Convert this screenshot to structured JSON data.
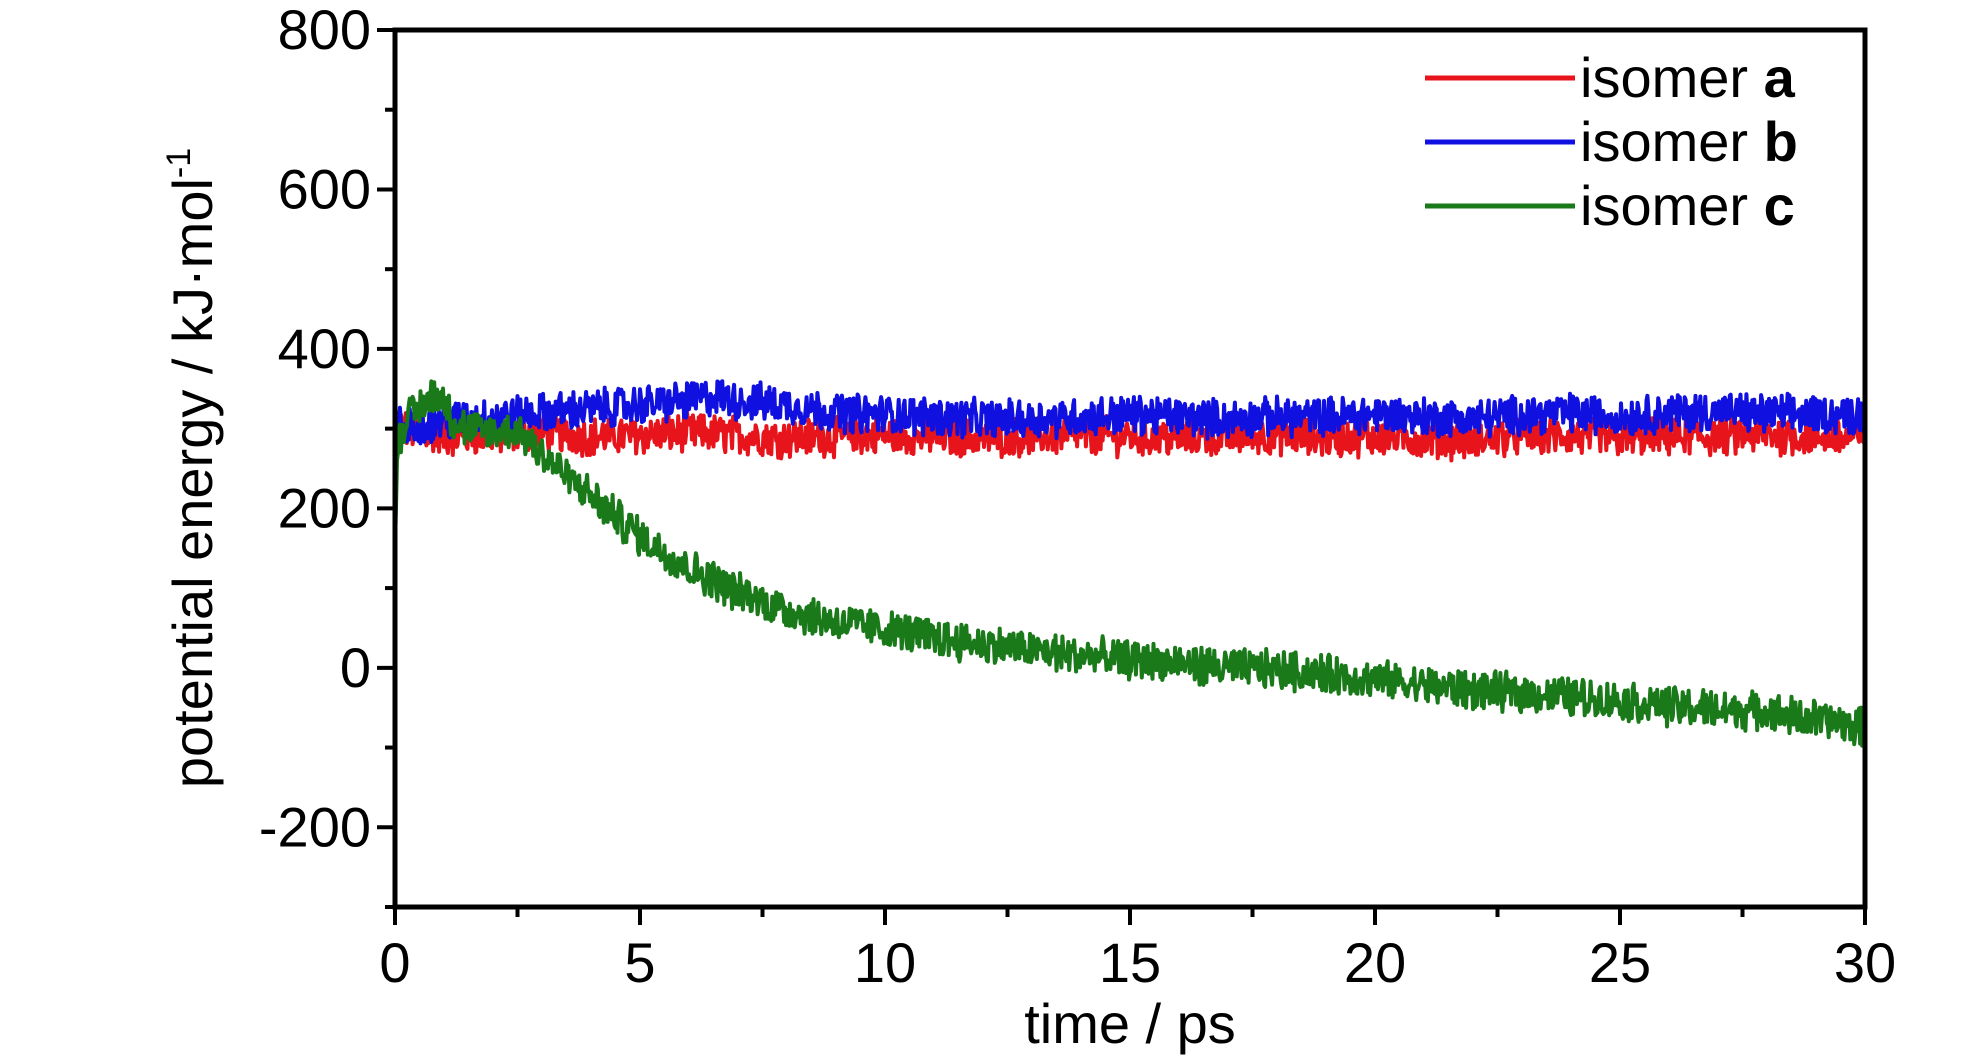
{
  "chart_data": {
    "type": "line",
    "xlabel": "time / ps",
    "ylabel_main": "potential energy / kJ·mol",
    "ylabel_sup": "-1",
    "xlim": [
      0,
      30
    ],
    "ylim": [
      -300,
      800
    ],
    "xticks": [
      0,
      5,
      10,
      15,
      20,
      25,
      30
    ],
    "yticks": [
      -200,
      0,
      200,
      400,
      600,
      800
    ],
    "grid": false,
    "legend_position": "top-right",
    "series": [
      {
        "name_prefix": "isomer ",
        "name_bold": "a",
        "color": "#e8141b",
        "x": [
          0,
          0.05,
          0.2,
          0.5,
          1,
          2,
          3,
          4,
          5,
          6,
          7,
          8,
          9,
          10,
          11,
          12,
          13,
          14,
          15,
          16,
          17,
          18,
          19,
          20,
          21,
          22,
          23,
          24,
          25,
          26,
          27,
          28,
          29,
          30
        ],
        "y": [
          200,
          310,
          300,
          295,
          290,
          292,
          295,
          290,
          292,
          295,
          292,
          288,
          290,
          292,
          290,
          288,
          290,
          292,
          290,
          288,
          290,
          292,
          288,
          290,
          288,
          285,
          292,
          290,
          288,
          290,
          290,
          292,
          290,
          288
        ]
      },
      {
        "name_prefix": "isomer ",
        "name_bold": "b",
        "color": "#1010e0",
        "x": [
          0,
          0.05,
          0.2,
          0.5,
          1,
          2,
          3,
          4,
          5,
          6,
          6.5,
          7,
          8,
          9,
          10,
          11,
          12,
          13,
          14,
          15,
          16,
          17,
          18,
          19,
          20,
          21,
          22,
          23,
          24,
          25,
          26,
          27,
          28,
          29,
          30
        ],
        "y": [
          230,
          305,
          300,
          305,
          310,
          315,
          320,
          325,
          330,
          335,
          340,
          335,
          330,
          320,
          318,
          315,
          312,
          312,
          315,
          318,
          315,
          312,
          315,
          315,
          318,
          315,
          312,
          318,
          320,
          315,
          320,
          322,
          318,
          318,
          318
        ]
      },
      {
        "name_prefix": "isomer ",
        "name_bold": "c",
        "color": "#1a7a1a",
        "x": [
          0,
          0.05,
          0.2,
          0.5,
          0.8,
          1,
          1.2,
          1.5,
          2,
          2.5,
          3,
          3.5,
          4,
          4.5,
          5,
          6,
          7,
          8,
          9,
          10,
          11,
          12,
          13,
          14,
          15,
          16,
          17,
          18,
          19,
          20,
          21,
          22,
          23,
          24,
          25,
          26,
          27,
          28,
          29,
          30
        ],
        "y": [
          150,
          280,
          310,
          325,
          345,
          335,
          310,
          298,
          295,
          298,
          270,
          240,
          215,
          190,
          165,
          125,
          95,
          72,
          58,
          48,
          38,
          30,
          22,
          15,
          10,
          5,
          0,
          -2,
          -8,
          -15,
          -22,
          -28,
          -32,
          -36,
          -42,
          -48,
          -52,
          -55,
          -65,
          -75
        ]
      }
    ]
  }
}
